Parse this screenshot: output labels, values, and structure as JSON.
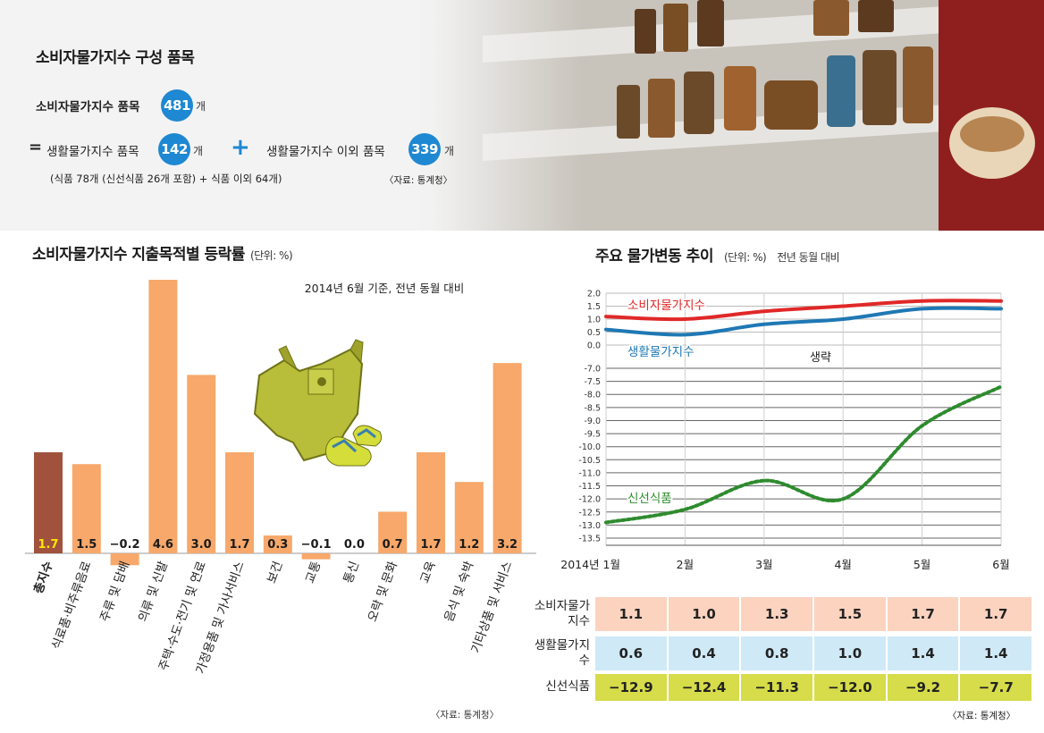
{
  "summary": {
    "title": "소비자물가지수 구성 품목",
    "cpi_items_label": "소비자물가지수 품목",
    "cpi_items_count": "481",
    "unit_gae": "개",
    "equals_sign": "=",
    "living_items_label": "생활물가지수 품목",
    "living_items_count": "142",
    "plus_sign": "+",
    "non_living_items_label": "생활물가지수 이외 품목",
    "non_living_items_count": "339",
    "breakdown_note": "(식품 78개 (신선식품 26개 포함) + 식품 이외 64개)",
    "source": "〈자료: 통계청〉"
  },
  "colors": {
    "accent_blue": "#1e88d2",
    "bar_orange": "#f7a86a",
    "bar_total": "#a0523d",
    "cpi_red": "#e02828",
    "living_blue": "#1f78b4",
    "fresh_green": "#2e8b2e",
    "row_pink": "#fbd3bf",
    "row_blue": "#cfe9f7",
    "row_olive": "#d6dc4a"
  },
  "chart_data": [
    {
      "type": "bar",
      "title": "소비자물가지수 지출목적별 등락률",
      "unit_label": "(단위: %)",
      "subtitle": "2014년 6월 기준, 전년 동월 대비",
      "source": "〈자료: 통계청〉",
      "categories": [
        "총지수",
        "식료품·비주류음료",
        "주류 및 담배",
        "의류 및 신발",
        "주택·수도·전기 및 연료",
        "가정용품 및 가사서비스",
        "보건",
        "교통",
        "통신",
        "오락 및 문화",
        "교육",
        "음식 및 숙박",
        "기타상품 및 서비스"
      ],
      "values": [
        1.7,
        1.5,
        -0.2,
        4.6,
        3.0,
        1.7,
        0.3,
        -0.1,
        0.0,
        0.7,
        1.7,
        1.2,
        3.2
      ],
      "value_labels": [
        "1.7",
        "1.5",
        "−0.2",
        "4.6",
        "3.0",
        "1.7",
        "0.3",
        "−0.1",
        "0.0",
        "0.7",
        "1.7",
        "1.2",
        "3.2"
      ],
      "highlight_index": 0,
      "ylim": [
        -0.4,
        4.6
      ]
    },
    {
      "type": "line",
      "title": "주요 물가변동 추이",
      "unit_label": "(단위: %)",
      "subtitle": "전년 동월 대비",
      "break_label": "생략",
      "source": "〈자료: 통계청〉",
      "x": [
        "2014년 1월",
        "2월",
        "3월",
        "4월",
        "5월",
        "6월"
      ],
      "upper_ticks": [
        "2.0",
        "1.5",
        "1.0",
        "0.5",
        "0.0"
      ],
      "upper_tick_values": [
        2.0,
        1.5,
        1.0,
        0.5,
        0.0
      ],
      "lower_ticks": [
        "-7.0",
        "-7.5",
        "-8.0",
        "-8.5",
        "-9.0",
        "-9.5",
        "-10.0",
        "-10.5",
        "-11.0",
        "-11.5",
        "-12.0",
        "-12.5",
        "-13.0",
        "-13.5"
      ],
      "lower_tick_values": [
        -7.0,
        -7.5,
        -8.0,
        -8.5,
        -9.0,
        -9.5,
        -10.0,
        -10.5,
        -11.0,
        -11.5,
        -12.0,
        -12.5,
        -13.0,
        -13.5
      ],
      "upper_ylim": [
        0.0,
        2.0
      ],
      "lower_ylim": [
        -13.5,
        -7.0
      ],
      "series": [
        {
          "name": "소비자물가지수",
          "values": [
            1.1,
            1.0,
            1.3,
            1.5,
            1.7,
            1.7
          ],
          "panel": "upper"
        },
        {
          "name": "생활물가지수",
          "values": [
            0.6,
            0.4,
            0.8,
            1.0,
            1.4,
            1.4
          ],
          "panel": "upper"
        },
        {
          "name": "신선식품",
          "values": [
            -12.9,
            -12.4,
            -11.3,
            -12.0,
            -9.2,
            -7.7
          ],
          "panel": "lower"
        }
      ]
    }
  ],
  "table": {
    "rows": [
      {
        "label": "소비자물가지수",
        "cells": [
          "1.1",
          "1.0",
          "1.3",
          "1.5",
          "1.7",
          "1.7"
        ]
      },
      {
        "label": "생활물가지수",
        "cells": [
          "0.6",
          "0.4",
          "0.8",
          "1.0",
          "1.4",
          "1.4"
        ]
      },
      {
        "label": "신선식품",
        "cells": [
          "−12.9",
          "−12.4",
          "−11.3",
          "−12.0",
          "−9.2",
          "−7.7"
        ]
      }
    ]
  }
}
